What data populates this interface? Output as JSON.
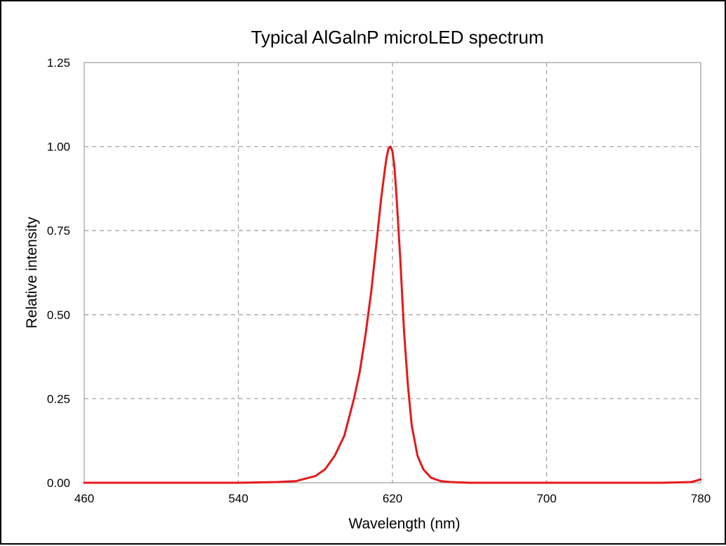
{
  "chart_data": {
    "type": "line",
    "title": "Typical AlGalnP microLED spectrum",
    "xlabel": "Wavelength (nm)",
    "ylabel": "Relative intensity",
    "xlim": [
      460,
      780
    ],
    "ylim": [
      0,
      1.25
    ],
    "x_ticks": [
      "460",
      "540",
      "620",
      "700",
      "780"
    ],
    "y_ticks": [
      "0.00",
      "0.25",
      "0.50",
      "0.75",
      "1.00",
      "1.25"
    ],
    "grid": "dashed",
    "legend": "none",
    "series": [
      {
        "color": "#e41a1c",
        "x": [
          460,
          480,
          500,
          520,
          540,
          560,
          570,
          580,
          585,
          590,
          595,
          600,
          603,
          606,
          609,
          612,
          614,
          616,
          617,
          618,
          619,
          620,
          621,
          622,
          624,
          626,
          628,
          630,
          633,
          636,
          640,
          645,
          650,
          660,
          680,
          700,
          720,
          740,
          760,
          775,
          780
        ],
        "y": [
          0.0,
          0.0,
          0.0,
          0.0,
          0.0,
          0.002,
          0.005,
          0.02,
          0.04,
          0.08,
          0.14,
          0.25,
          0.33,
          0.44,
          0.57,
          0.73,
          0.84,
          0.93,
          0.97,
          0.995,
          1.0,
          0.985,
          0.94,
          0.86,
          0.67,
          0.45,
          0.29,
          0.17,
          0.08,
          0.04,
          0.015,
          0.005,
          0.002,
          0.0,
          0.0,
          0.0,
          0.0,
          0.0,
          0.0,
          0.002,
          0.01
        ]
      }
    ]
  }
}
